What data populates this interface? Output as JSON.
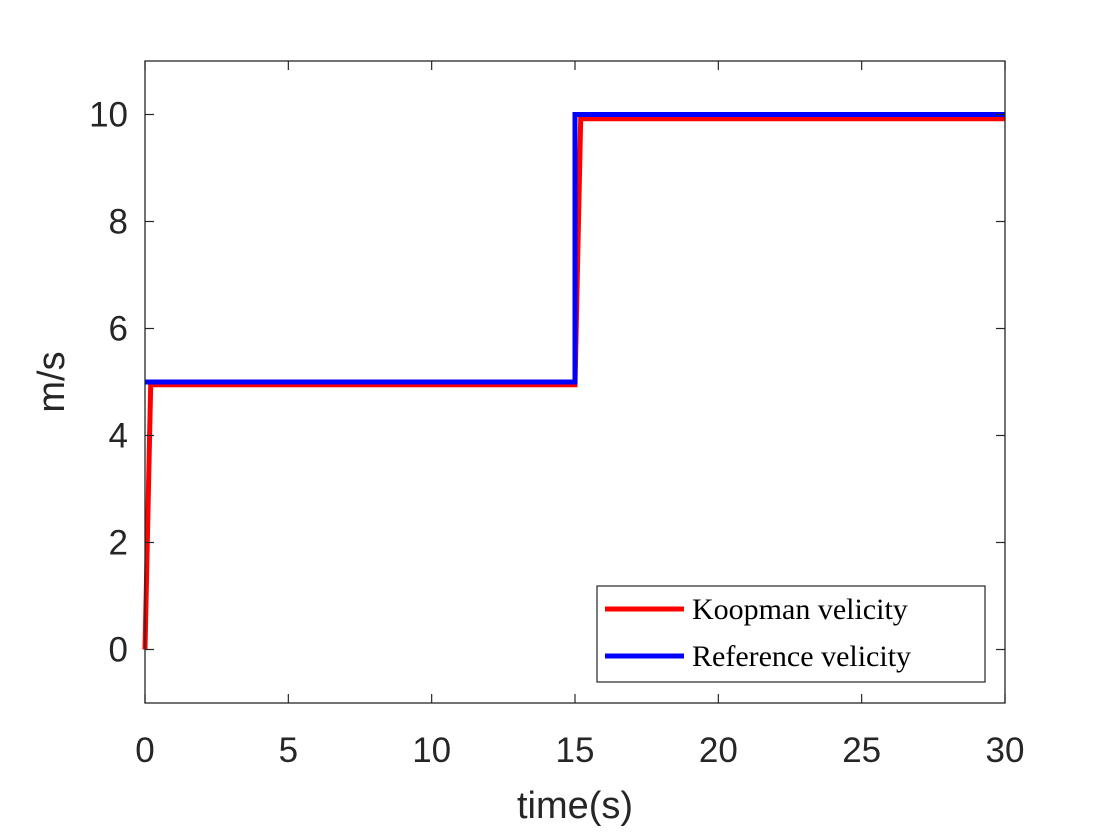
{
  "chart_data": {
    "type": "line",
    "title": "",
    "xlabel": "time(s)",
    "ylabel": "m/s",
    "xlim": [
      0,
      30
    ],
    "ylim": [
      -1,
      11
    ],
    "xticks": [
      0,
      5,
      10,
      15,
      20,
      25,
      30
    ],
    "yticks": [
      0,
      2,
      4,
      6,
      8,
      10
    ],
    "xtick_labels": [
      "0",
      "5",
      "10",
      "15",
      "20",
      "25",
      "30"
    ],
    "ytick_labels": [
      "0",
      "2",
      "4",
      "6",
      "8",
      "10"
    ],
    "grid": false,
    "legend_position": "bottom-right",
    "series": [
      {
        "name": "Koopman velicity",
        "color": "#ff0000",
        "x": [
          0,
          0.2,
          15.0,
          15.2,
          30
        ],
        "y": [
          0,
          4.95,
          4.95,
          9.92,
          9.92
        ]
      },
      {
        "name": "Reference velicity",
        "color": "#0000ff",
        "x": [
          0,
          15.0,
          15.0,
          30
        ],
        "y": [
          5,
          5,
          10,
          10
        ]
      }
    ]
  }
}
